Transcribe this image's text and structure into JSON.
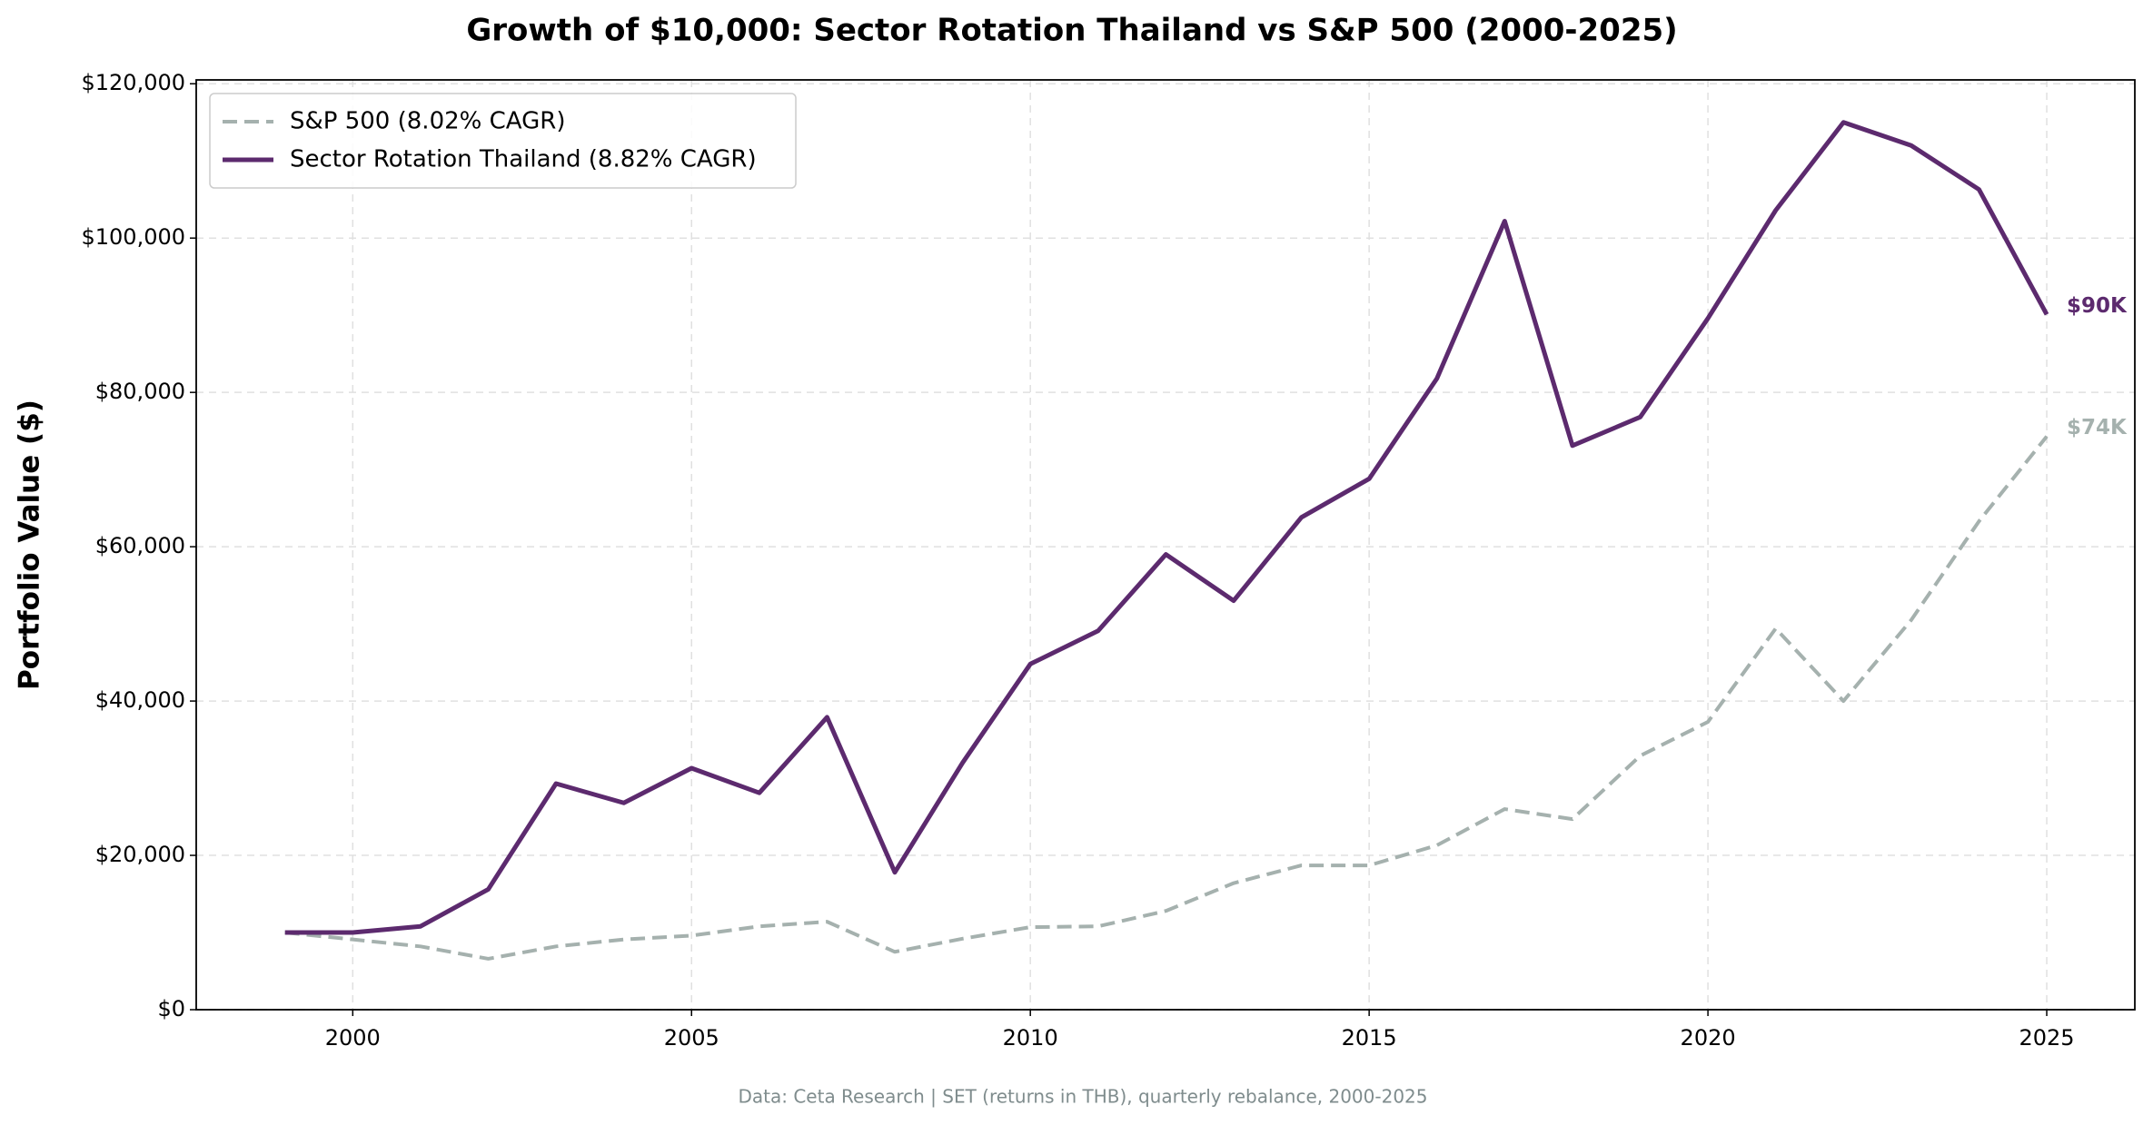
{
  "chart_data": {
    "type": "line",
    "title": "Growth of $10,000: Sector Rotation Thailand vs S&P 500 (2000-2025)",
    "ylabel": "Portfolio Value ($)",
    "footnote": "Data: Ceta Research | SET (returns in THB), quarterly rebalance, 2000-2025",
    "x": [
      1999,
      2000,
      2001,
      2002,
      2003,
      2004,
      2005,
      2006,
      2007,
      2008,
      2009,
      2010,
      2011,
      2012,
      2013,
      2014,
      2015,
      2016,
      2017,
      2018,
      2019,
      2020,
      2021,
      2022,
      2023,
      2024,
      2025
    ],
    "series": [
      {
        "name": "S&P 500 (8.02% CAGR)",
        "color": "#a5b1ae",
        "linestyle": "dashed",
        "end_label": "$74K",
        "values": [
          10000,
          9100,
          8200,
          6600,
          8200,
          9100,
          9600,
          10800,
          11400,
          7500,
          9200,
          10700,
          10800,
          12800,
          16400,
          18700,
          18700,
          21300,
          26000,
          24700,
          32900,
          37300,
          49400,
          40000,
          50500,
          63300,
          74300
        ]
      },
      {
        "name": "Sector Rotation Thailand (8.82% CAGR)",
        "color": "#5c2a6e",
        "linestyle": "solid",
        "end_label": "$90K",
        "values": [
          10000,
          10000,
          10800,
          15600,
          29300,
          26800,
          31300,
          28100,
          37900,
          17800,
          32000,
          44800,
          49100,
          59000,
          53000,
          63800,
          68800,
          81800,
          102200,
          73100,
          76800,
          89600,
          103600,
          115000,
          112000,
          106300,
          90100
        ]
      }
    ],
    "xlim": [
      1997.69,
      2026.3
    ],
    "xticks": [
      2000,
      2005,
      2010,
      2015,
      2020,
      2025
    ],
    "ylim": [
      0,
      120500
    ],
    "yticks": [
      {
        "value": 0,
        "label": "$0"
      },
      {
        "value": 20000,
        "label": "$20,000"
      },
      {
        "value": 40000,
        "label": "$40,000"
      },
      {
        "value": 60000,
        "label": "$60,000"
      },
      {
        "value": 80000,
        "label": "$80,000"
      },
      {
        "value": 100000,
        "label": "$100,000"
      },
      {
        "value": 120000,
        "label": "$120,000"
      }
    ],
    "grid": true,
    "legend": "upper left"
  }
}
